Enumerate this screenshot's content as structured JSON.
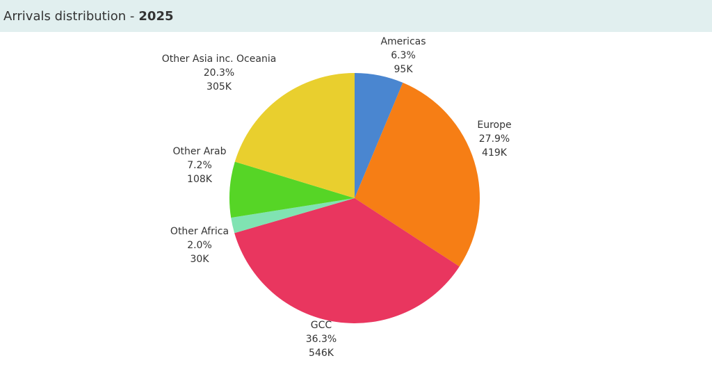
{
  "header": {
    "title": "Arrivals distribution -",
    "title_emphasis": "2025"
  },
  "chart_data": {
    "type": "pie",
    "categories": [
      "Americas",
      "Europe",
      "GCC",
      "Other Africa",
      "Other Arab",
      "Other Asia inc. Oceania"
    ],
    "values": [
      6.3,
      27.9,
      36.3,
      2.0,
      7.2,
      20.3
    ],
    "value_labels": [
      "6.3%",
      "27.9%",
      "36.3%",
      "2.0%",
      "7.2%",
      "20.3%"
    ],
    "counts": [
      95000,
      419000,
      546000,
      30000,
      108000,
      305000
    ],
    "count_labels": [
      "95K",
      "419K",
      "546K",
      "30K",
      "108K",
      "305K"
    ],
    "colors": [
      "#4a86d0",
      "#f67e15",
      "#e9365f",
      "#80e3b2",
      "#56d526",
      "#e9cf2e"
    ]
  }
}
